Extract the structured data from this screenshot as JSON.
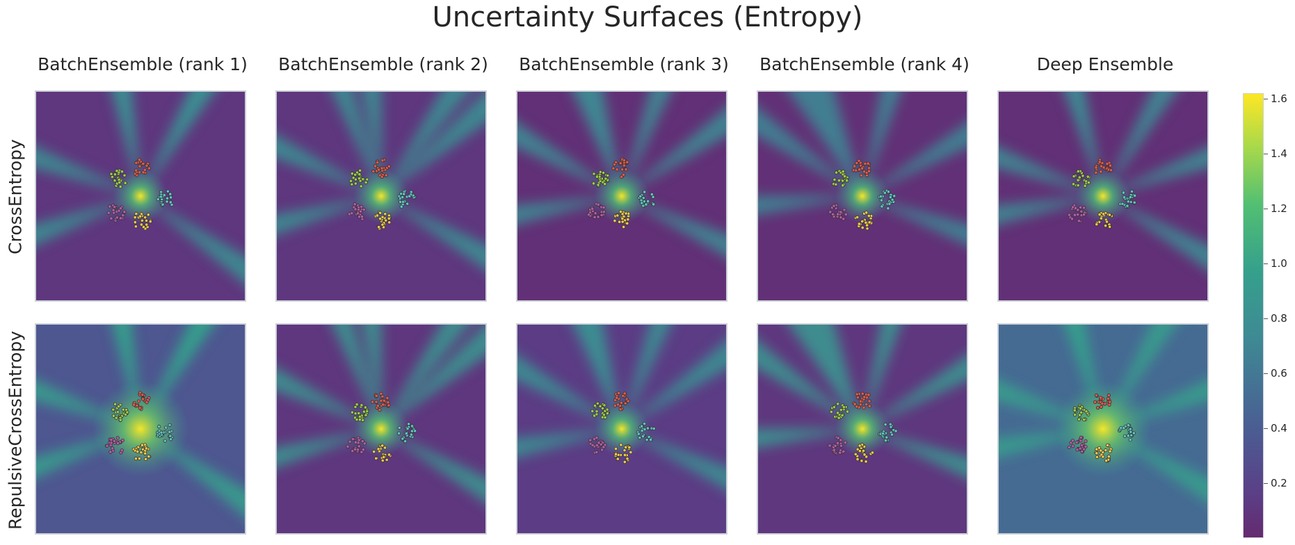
{
  "figure_title": "Uncertainty Surfaces (Entropy)",
  "columns": [
    "BatchEnsemble (rank 1)",
    "BatchEnsemble (rank 2)",
    "BatchEnsemble (rank 3)",
    "BatchEnsemble (rank 4)",
    "Deep Ensemble"
  ],
  "rows": [
    "CrossEntropy",
    "RepulsiveCrossEntropy"
  ],
  "colorbar": {
    "ticks": [
      "0.2",
      "0.4",
      "0.6",
      "0.8",
      "1.0",
      "1.2",
      "1.4",
      "1.6"
    ],
    "range": [
      0.0,
      1.62
    ],
    "colormap": "viridis"
  },
  "chart_data": {
    "type": "heatmap",
    "title": "Uncertainty Surfaces (Entropy)",
    "grid": "2 rows x 5 columns of panels",
    "value_label": "Entropy",
    "colorbar_range": [
      0.0,
      1.62
    ],
    "cluster_colors": [
      "#e05a4a",
      "#5fc4c4",
      "#f2c94c",
      "#b35ca8",
      "#9ccc4a"
    ],
    "panels": [
      {
        "row": "CrossEntropy",
        "column": "BatchEnsemble (rank 1)",
        "peak_entropy": 1.6,
        "background_entropy": 0.1,
        "ray_entropy": 0.8
      },
      {
        "row": "CrossEntropy",
        "column": "BatchEnsemble (rank 2)",
        "peak_entropy": 1.6,
        "background_entropy": 0.1,
        "ray_entropy": 0.8
      },
      {
        "row": "CrossEntropy",
        "column": "BatchEnsemble (rank 3)",
        "peak_entropy": 1.6,
        "background_entropy": 0.05,
        "ray_entropy": 0.75
      },
      {
        "row": "CrossEntropy",
        "column": "BatchEnsemble (rank 4)",
        "peak_entropy": 1.6,
        "background_entropy": 0.05,
        "ray_entropy": 0.7
      },
      {
        "row": "CrossEntropy",
        "column": "Deep Ensemble",
        "peak_entropy": 1.6,
        "background_entropy": 0.05,
        "ray_entropy": 0.75
      },
      {
        "row": "RepulsiveCrossEntropy",
        "column": "BatchEnsemble (rank 1)",
        "peak_entropy": 1.6,
        "background_entropy": 0.35,
        "ray_entropy": 0.95
      },
      {
        "row": "RepulsiveCrossEntropy",
        "column": "BatchEnsemble (rank 2)",
        "peak_entropy": 1.6,
        "background_entropy": 0.1,
        "ray_entropy": 0.85
      },
      {
        "row": "RepulsiveCrossEntropy",
        "column": "BatchEnsemble (rank 3)",
        "peak_entropy": 1.6,
        "background_entropy": 0.15,
        "ray_entropy": 0.8
      },
      {
        "row": "RepulsiveCrossEntropy",
        "column": "BatchEnsemble (rank 4)",
        "peak_entropy": 1.6,
        "background_entropy": 0.1,
        "ray_entropy": 0.85
      },
      {
        "row": "RepulsiveCrossEntropy",
        "column": "Deep Ensemble",
        "peak_entropy": 1.6,
        "background_entropy": 0.5,
        "ray_entropy": 0.95
      }
    ]
  }
}
